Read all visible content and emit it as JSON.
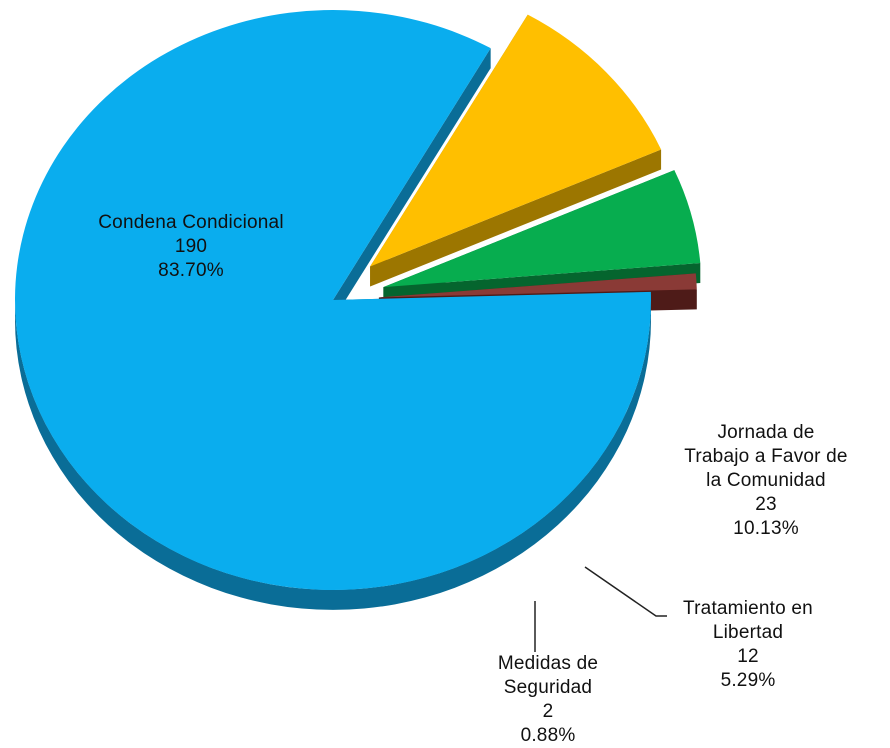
{
  "chart_data": {
    "type": "pie",
    "title": "",
    "slices": [
      {
        "label_lines": [
          "Condena Condicional"
        ],
        "value": "190",
        "percent": "83.70%",
        "color": "#0aadee",
        "side_color": "#0a6d97"
      },
      {
        "label_lines": [
          "Jornada de",
          "Trabajo a Favor de",
          "la Comunidad"
        ],
        "value": "23",
        "percent": "10.13%",
        "color": "#ffbf00",
        "side_color": "#9c7600"
      },
      {
        "label_lines": [
          "Tratamiento en",
          "Libertad"
        ],
        "value": "12",
        "percent": "5.29%",
        "color": "#07ad4f",
        "side_color": "#05652e"
      },
      {
        "label_lines": [
          "Medidas de",
          "Seguridad"
        ],
        "value": "2",
        "percent": "0.88%",
        "color": "#8a3a36",
        "side_color": "#4e1b18"
      }
    ]
  }
}
